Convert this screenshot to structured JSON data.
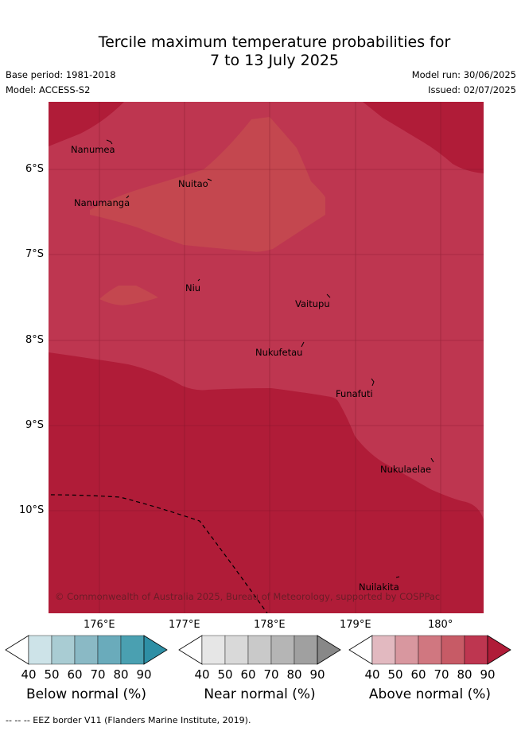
{
  "title": {
    "line1": "Tercile maximum temperature probabilities for",
    "line2": "7 to 13 July 2025"
  },
  "meta": {
    "base_period": "Base period: 1981-2018",
    "model": "Model: ACCESS-S2",
    "model_run": "Model run: 30/06/2025",
    "issued": "Issued: 02/07/2025"
  },
  "axes": {
    "lat_labels": [
      "6°S",
      "7°S",
      "8°S",
      "9°S",
      "10°S"
    ],
    "lon_labels": [
      "176°E",
      "177°E",
      "178°E",
      "179°E",
      "180°"
    ]
  },
  "places": {
    "nanumea": "Nanumea",
    "nuitao": "Nuitao",
    "nanumanga": "Nanumanga",
    "niu": "Niu",
    "vaitupu": "Vaitupu",
    "nukufetau": "Nukufetau",
    "funafuti": "Funafuti",
    "nukulaelae": "Nukulaelae",
    "nuilakita": "Nuilakita"
  },
  "credit": "© Commonwealth of Australia 2025, Bureau of Meteorology, supported by COSPPac",
  "colorbars": {
    "ticks": [
      "40",
      "50",
      "60",
      "70",
      "80",
      "90"
    ],
    "below": {
      "label": "Below normal (%)",
      "colors": [
        "#ffffff",
        "#cde3e8",
        "#a9ccd3",
        "#8ab9c5",
        "#6aabbb",
        "#4aa0b1",
        "#2e8fa5"
      ]
    },
    "near": {
      "label": "Near normal (%)",
      "colors": [
        "#ffffff",
        "#e6e6e6",
        "#d9d9d9",
        "#c9c9c9",
        "#b5b5b5",
        "#a0a0a0",
        "#888888"
      ]
    },
    "above": {
      "label": "Above normal (%)",
      "colors": [
        "#ffffff",
        "#e2b9c0",
        "#d8979f",
        "#d07780",
        "#c75b66",
        "#be3650",
        "#b01c38"
      ]
    }
  },
  "footnote": "--  --  -- EEZ border V11 (Flanders Marine Institute, 2019)."
}
